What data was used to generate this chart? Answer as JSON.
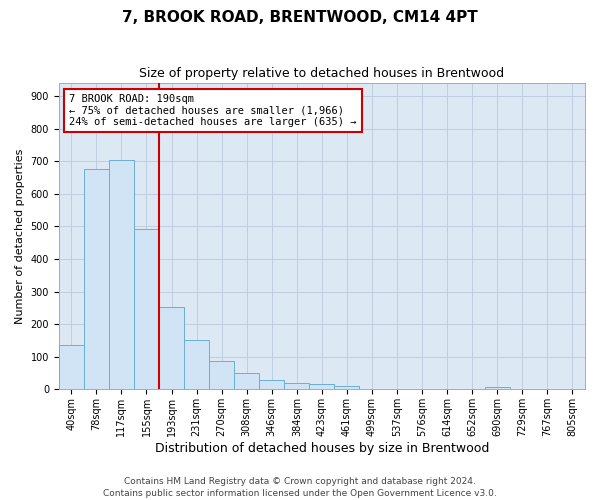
{
  "title": "7, BROOK ROAD, BRENTWOOD, CM14 4PT",
  "subtitle": "Size of property relative to detached houses in Brentwood",
  "xlabel": "Distribution of detached houses by size in Brentwood",
  "ylabel": "Number of detached properties",
  "bar_labels": [
    "40sqm",
    "78sqm",
    "117sqm",
    "155sqm",
    "193sqm",
    "231sqm",
    "270sqm",
    "308sqm",
    "346sqm",
    "384sqm",
    "423sqm",
    "461sqm",
    "499sqm",
    "537sqm",
    "576sqm",
    "614sqm",
    "652sqm",
    "690sqm",
    "729sqm",
    "767sqm",
    "805sqm"
  ],
  "bar_values": [
    135,
    675,
    705,
    493,
    253,
    152,
    86,
    50,
    28,
    20,
    18,
    10,
    0,
    0,
    0,
    0,
    0,
    8,
    0,
    0,
    0
  ],
  "bar_color": "#d0e4f5",
  "bar_edge_color": "#6aaed6",
  "vline_pos": 3.5,
  "vline_color": "#cc0000",
  "annotation_line1": "7 BROOK ROAD: 190sqm",
  "annotation_line2": "← 75% of detached houses are smaller (1,966)",
  "annotation_line3": "24% of semi-detached houses are larger (635) →",
  "annotation_box_color": "#cc0000",
  "annotation_bg": "#ffffff",
  "ylim": [
    0,
    940
  ],
  "yticks": [
    0,
    100,
    200,
    300,
    400,
    500,
    600,
    700,
    800,
    900
  ],
  "grid_color": "#c0cfe0",
  "background_color": "#dce9f5",
  "footer_line1": "Contains HM Land Registry data © Crown copyright and database right 2024.",
  "footer_line2": "Contains public sector information licensed under the Open Government Licence v3.0.",
  "title_fontsize": 11,
  "subtitle_fontsize": 9,
  "xlabel_fontsize": 9,
  "ylabel_fontsize": 8,
  "tick_fontsize": 7,
  "annot_fontsize": 7.5,
  "footer_fontsize": 6.5
}
